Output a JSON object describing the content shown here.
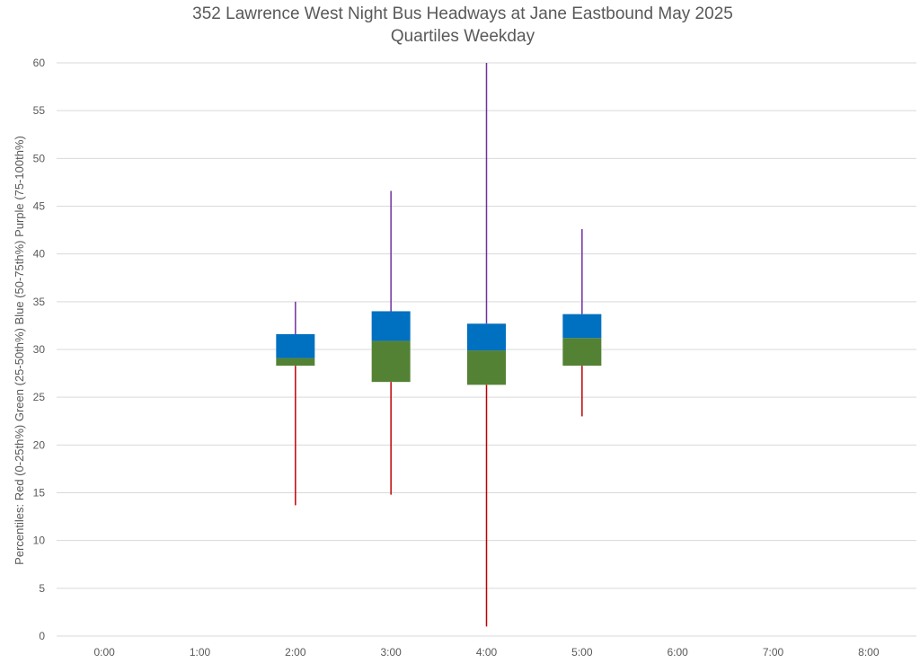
{
  "chart_data": {
    "type": "box",
    "title": "352 Lawrence West Night Bus Headways at Jane Eastbound May 2025",
    "subtitle": "Quartiles Weekday",
    "ylabel": "Percentiles:  Red (0-25th%)  Green (25-50th%)  Blue (50-75th%)  Purple (75-100th%)",
    "xlabel": "",
    "ylim": [
      0,
      60
    ],
    "yticks": [
      0,
      5,
      10,
      15,
      20,
      25,
      30,
      35,
      40,
      45,
      50,
      55,
      60
    ],
    "categories": [
      "0:00",
      "1:00",
      "2:00",
      "3:00",
      "4:00",
      "5:00",
      "6:00",
      "7:00",
      "8:00"
    ],
    "grid": true,
    "colors": {
      "lower_whisker": "#c00000",
      "q1_to_median": "#548235",
      "median_to_q3": "#0070c0",
      "upper_whisker": "#7030a0",
      "text": "#595959",
      "grid": "#d9d9d9"
    },
    "boxes": [
      {
        "category": "2:00",
        "min": 13.7,
        "q1": 28.3,
        "median": 29.1,
        "q3": 31.6,
        "max": 35.0
      },
      {
        "category": "3:00",
        "min": 14.8,
        "q1": 26.6,
        "median": 30.9,
        "q3": 34.0,
        "max": 46.6
      },
      {
        "category": "4:00",
        "min": 1.0,
        "q1": 26.3,
        "median": 29.9,
        "q3": 32.7,
        "max": 60.0
      },
      {
        "category": "5:00",
        "min": 23.0,
        "q1": 28.3,
        "median": 31.2,
        "q3": 33.7,
        "max": 42.6
      }
    ]
  }
}
